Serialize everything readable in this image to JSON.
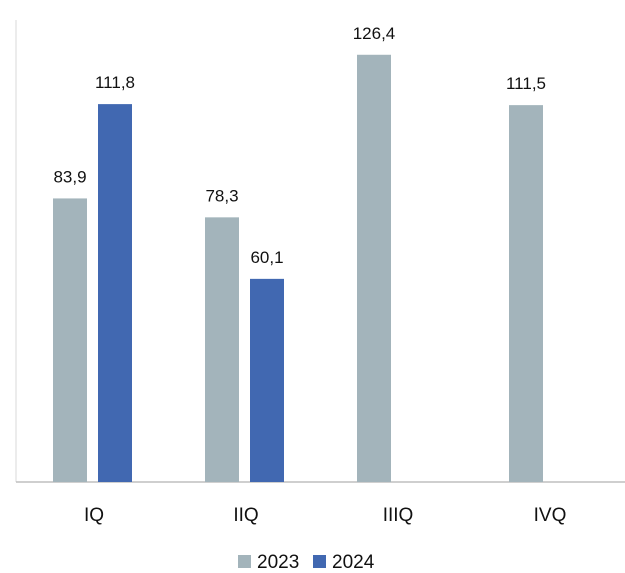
{
  "chart_data": {
    "type": "bar",
    "categories": [
      "IQ",
      "IIQ",
      "IIIQ",
      "IVQ"
    ],
    "series": [
      {
        "name": "2023",
        "color": "#a3b4bb",
        "values": [
          83.9,
          78.3,
          126.4,
          111.5
        ],
        "labels": [
          "83,9",
          "78,3",
          "126,4",
          "111,5"
        ]
      },
      {
        "name": "2024",
        "color": "#4168b1",
        "values": [
          111.8,
          60.1,
          null,
          null
        ],
        "labels": [
          "111,8",
          "60,1",
          "",
          ""
        ]
      }
    ],
    "title": "",
    "xlabel": "",
    "ylabel": "",
    "ylim": [
      0,
      130
    ],
    "grid": false,
    "legend_position": "bottom"
  }
}
